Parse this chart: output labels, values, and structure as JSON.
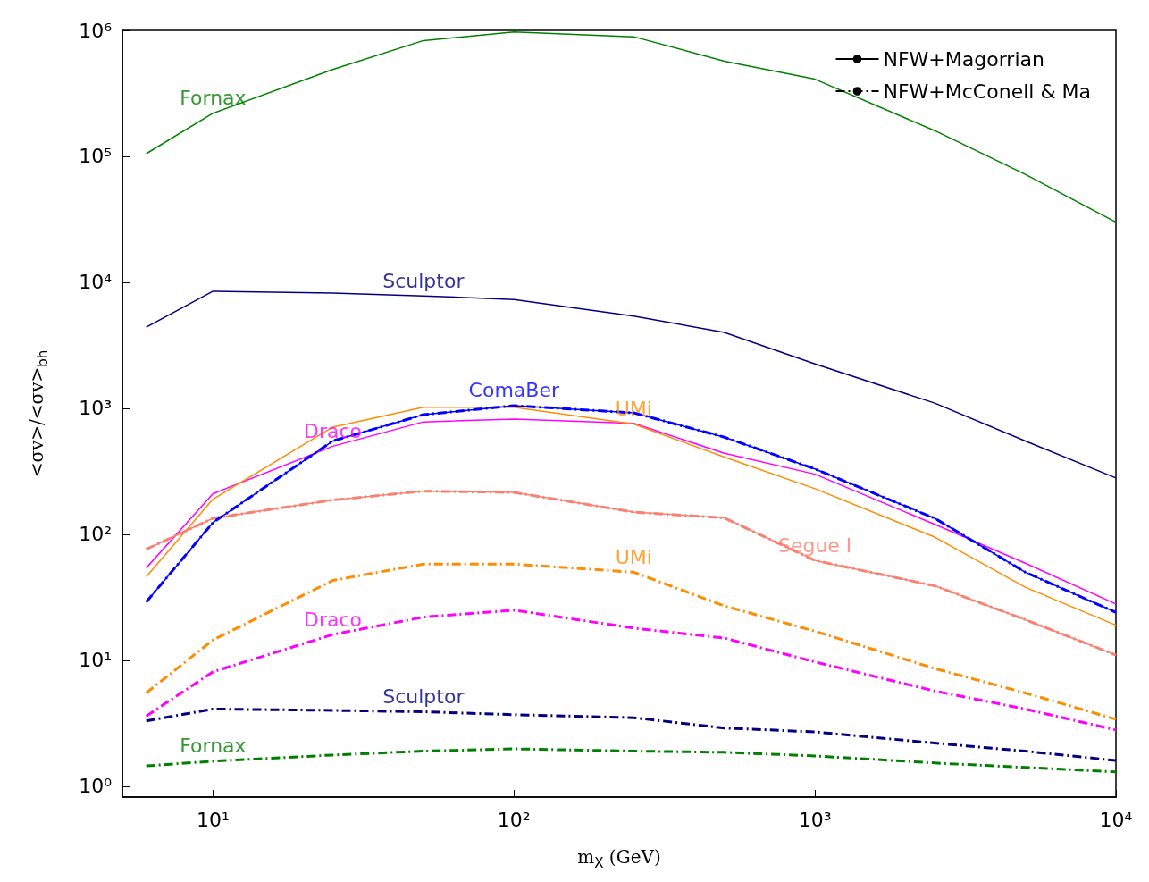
{
  "chart_data": {
    "type": "line",
    "xlabel": "m$_{X}$ (GeV)",
    "ylabel": "<σv>/<σv>$_{bh}$",
    "log": "xy",
    "grid": false,
    "legend": "top right",
    "marker": "none",
    "x": [
      6,
      10,
      25,
      50,
      100,
      250,
      500,
      1000,
      2500,
      5000,
      10000
    ],
    "xlim": [
      5,
      10000
    ],
    "ylim": [
      0.82,
      1000000
    ],
    "xticks": [
      {
        "value": 10,
        "label": "10¹"
      },
      {
        "value": 100,
        "label": "10²"
      },
      {
        "value": 1000,
        "label": "10³"
      },
      {
        "value": 10000,
        "label": "10⁴"
      }
    ],
    "yticks": [
      {
        "value": 1,
        "label": "10⁰"
      },
      {
        "value": 10,
        "label": "10¹"
      },
      {
        "value": 100,
        "label": "10²"
      },
      {
        "value": 1000,
        "label": "10³"
      },
      {
        "value": 10000,
        "label": "10⁴"
      },
      {
        "value": 100000,
        "label": "10⁵"
      },
      {
        "value": 1000000,
        "label": "10⁶"
      }
    ],
    "series": [
      {
        "name": "NFW+Magorrian",
        "color": "#000000",
        "line_style": "solid",
        "values": [
          null,
          null,
          null,
          null,
          null,
          null,
          null,
          null,
          null,
          null,
          null
        ]
      },
      {
        "name": "NFW+McConell & Ma",
        "color": "#000000",
        "line_style": "dashdot",
        "values": [
          null,
          null,
          null,
          null,
          null,
          null,
          null,
          null,
          null,
          null,
          null
        ]
      },
      {
        "color": "#008000",
        "line_style": "solid",
        "values": [
          105000,
          220000,
          490000,
          830000,
          970000,
          890000,
          570000,
          410000,
          160000,
          72000,
          30000
        ]
      },
      {
        "color": "#000080",
        "line_style": "solid",
        "values": [
          4400,
          8500,
          8200,
          7800,
          7300,
          5400,
          4000,
          2250,
          1100,
          550,
          280
        ]
      },
      {
        "color": "#ff00ff",
        "line_style": "solid",
        "values": [
          54,
          210,
          500,
          780,
          820,
          760,
          440,
          300,
          120,
          59,
          28
        ]
      },
      {
        "color": "#ff8c00",
        "line_style": "solid",
        "values": [
          46,
          190,
          710,
          1020,
          1020,
          750,
          410,
          230,
          95,
          38,
          19
        ]
      },
      {
        "color": "#fa8072",
        "line_style": "solid",
        "values": [
          76,
          134,
          187,
          220,
          215,
          150,
          135,
          62,
          39,
          21,
          11
        ]
      },
      {
        "color": "#fa8072",
        "line_style": "dashdot",
        "values": [
          76,
          134,
          187,
          220,
          215,
          150,
          135,
          62,
          39,
          21,
          11
        ]
      },
      {
        "color": "#0000ff",
        "line_style": "solid",
        "values": [
          29,
          124,
          550,
          890,
          1050,
          920,
          590,
          330,
          134,
          50,
          24
        ]
      },
      {
        "color": "#0000ff",
        "line_style": "dashdot",
        "values": [
          29,
          124,
          550,
          890,
          1050,
          920,
          590,
          330,
          134,
          50,
          24
        ]
      },
      {
        "color": "#ff8c00",
        "line_style": "dashdot",
        "values": [
          5.5,
          14.5,
          43,
          58,
          58,
          50,
          27,
          17,
          8.6,
          5.5,
          3.4
        ]
      },
      {
        "color": "#ff00ff",
        "line_style": "dashdot",
        "values": [
          3.6,
          8.1,
          16,
          22,
          25,
          18,
          15,
          9.7,
          5.7,
          4.1,
          2.8
        ]
      },
      {
        "color": "#000080",
        "line_style": "dashdot",
        "values": [
          3.3,
          4.1,
          4.0,
          3.9,
          3.7,
          3.5,
          2.9,
          2.7,
          2.2,
          1.9,
          1.6
        ]
      },
      {
        "color": "#008000",
        "line_style": "dashdot",
        "values": [
          1.45,
          1.58,
          1.77,
          1.9,
          1.98,
          1.9,
          1.86,
          1.74,
          1.53,
          1.41,
          1.3
        ]
      }
    ],
    "annotations": [
      {
        "text": "Fornax",
        "x": 10,
        "y": 220000
      },
      {
        "text": "Sculptor",
        "x": 50,
        "y": 7800
      },
      {
        "text": "ComaBer",
        "x": 100,
        "y": 1050
      },
      {
        "text": "Draco",
        "x": 25,
        "y": 500
      },
      {
        "text": "UMi",
        "x": 250,
        "y": 750
      },
      {
        "text": "Segue I",
        "x": 1000,
        "y": 62
      },
      {
        "text": "UMi",
        "x": 250,
        "y": 50
      },
      {
        "text": "Draco",
        "x": 25,
        "y": 16
      },
      {
        "text": "Sculptor",
        "x": 50,
        "y": 3.9
      },
      {
        "text": "Fornax",
        "x": 10,
        "y": 1.58
      }
    ]
  }
}
